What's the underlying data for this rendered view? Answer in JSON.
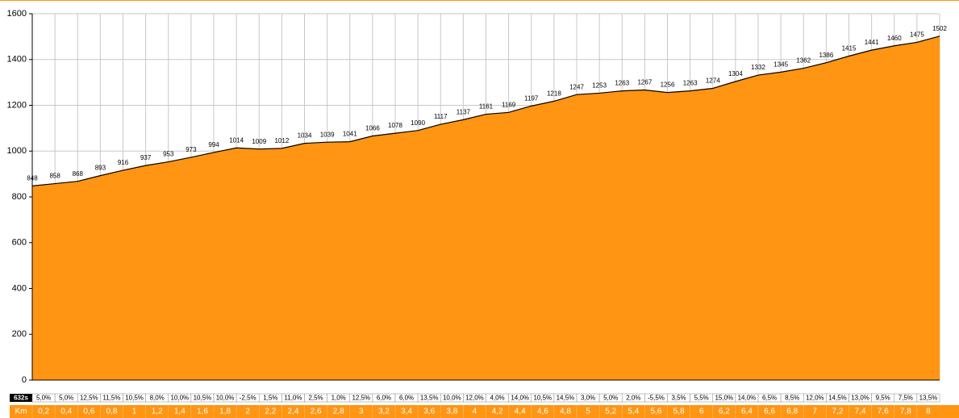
{
  "chart_data": {
    "type": "area",
    "values": [
      848,
      858,
      868,
      893,
      916,
      937,
      953,
      973,
      994,
      1014,
      1009,
      1012,
      1034,
      1039,
      1041,
      1066,
      1078,
      1090,
      1117,
      1137,
      1161,
      1169,
      1197,
      1218,
      1247,
      1253,
      1263,
      1267,
      1256,
      1263,
      1274,
      1304,
      1332,
      1345,
      1362,
      1386,
      1415,
      1441,
      1460,
      1475,
      1502
    ],
    "color": "#ff9512",
    "ylim": [
      0,
      1600
    ],
    "yticks": [
      0,
      200,
      400,
      600,
      800,
      1000,
      1200,
      1400,
      1600
    ],
    "grid": true,
    "table": {
      "corner": "632s",
      "grades": [
        "5,0%",
        "5,0%",
        "12,5%",
        "11,5%",
        "10,5%",
        "8,0%",
        "10,0%",
        "10,5%",
        "10,0%",
        "-2,5%",
        "1,5%",
        "11,0%",
        "2,5%",
        "1,0%",
        "12,5%",
        "6,0%",
        "6,0%",
        "13,5%",
        "10,0%",
        "12,0%",
        "4,0%",
        "14,0%",
        "10,5%",
        "14,5%",
        "3,0%",
        "5,0%",
        "2,0%",
        "-5,5%",
        "3,5%",
        "5,5%",
        "15,0%",
        "14,0%",
        "6,5%",
        "8,5%",
        "12,0%",
        "14,5%",
        "13,0%",
        "9,5%",
        "7,5%",
        "13,5%"
      ],
      "unit": "Km",
      "km": [
        "0,2",
        "0,4",
        "0,6",
        "0,8",
        "1",
        "1,2",
        "1,4",
        "1,6",
        "1,8",
        "2",
        "2,2",
        "2,4",
        "2,6",
        "2,8",
        "3",
        "3,2",
        "3,4",
        "3,6",
        "3,8",
        "4",
        "4,2",
        "4,4",
        "4,6",
        "4,8",
        "5",
        "5,2",
        "5,4",
        "5,6",
        "5,8",
        "6",
        "6,2",
        "6,4",
        "6,6",
        "6,8",
        "7",
        "7,2",
        "7,4",
        "7,6",
        "7,8",
        "8"
      ]
    }
  }
}
